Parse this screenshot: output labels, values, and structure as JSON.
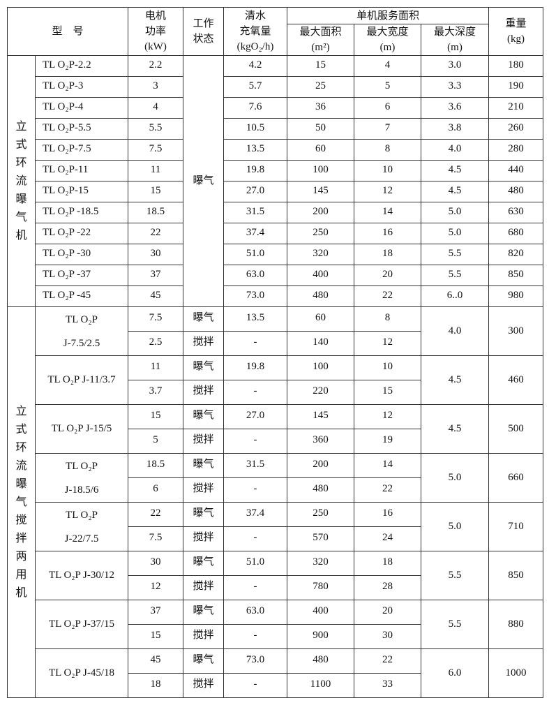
{
  "header": {
    "model": "型　号",
    "power": [
      "电机",
      "功率",
      "(kW)"
    ],
    "state": [
      "工作",
      "状态"
    ],
    "oxygen": [
      "清水",
      "充氧量",
      "(kgO₂/h)"
    ],
    "service_area": "单机服务面积",
    "max_area": [
      "最大面积",
      "(m²)"
    ],
    "max_width": [
      "最大宽度",
      "(m)"
    ],
    "max_depth": [
      "最大深度",
      "(m)"
    ],
    "weight": [
      "重量",
      "(kg)"
    ]
  },
  "section1": {
    "group": "立式环流曝气机",
    "state": "曝气",
    "rows": [
      {
        "model": "TL O₂P-2.2",
        "power": "2.2",
        "oxygen": "4.2",
        "area": "15",
        "width": "4",
        "depth": "3.0",
        "weight": "180"
      },
      {
        "model": "TL O₂P-3",
        "power": "3",
        "oxygen": "5.7",
        "area": "25",
        "width": "5",
        "depth": "3.3",
        "weight": "190"
      },
      {
        "model": "TL O₂P-4",
        "power": "4",
        "oxygen": "7.6",
        "area": "36",
        "width": "6",
        "depth": "3.6",
        "weight": "210"
      },
      {
        "model": "TL O₂P-5.5",
        "power": "5.5",
        "oxygen": "10.5",
        "area": "50",
        "width": "7",
        "depth": "3.8",
        "weight": "260"
      },
      {
        "model": "TL O₂P-7.5",
        "power": "7.5",
        "oxygen": "13.5",
        "area": "60",
        "width": "8",
        "depth": "4.0",
        "weight": "280"
      },
      {
        "model": "TL O₂P-11",
        "power": "11",
        "oxygen": "19.8",
        "area": "100",
        "width": "10",
        "depth": "4.5",
        "weight": "440"
      },
      {
        "model": "TL O₂P-15",
        "power": "15",
        "oxygen": "27.0",
        "area": "145",
        "width": "12",
        "depth": "4.5",
        "weight": "480"
      },
      {
        "model": "TL O₂P -18.5",
        "power": "18.5",
        "oxygen": "31.5",
        "area": "200",
        "width": "14",
        "depth": "5.0",
        "weight": "630"
      },
      {
        "model": "TL O₂P -22",
        "power": "22",
        "oxygen": "37.4",
        "area": "250",
        "width": "16",
        "depth": "5.0",
        "weight": "680"
      },
      {
        "model": "TL O₂P -30",
        "power": "30",
        "oxygen": "51.0",
        "area": "320",
        "width": "18",
        "depth": "5.5",
        "weight": "820"
      },
      {
        "model": "TL O₂P -37",
        "power": "37",
        "oxygen": "63.0",
        "area": "400",
        "width": "20",
        "depth": "5.5",
        "weight": "850"
      },
      {
        "model": "TL O₂P -45",
        "power": "45",
        "oxygen": "73.0",
        "area": "480",
        "width": "22",
        "depth": "6..0",
        "weight": "980"
      }
    ]
  },
  "section2": {
    "group": "立式环流曝气搅拌两用机",
    "rows": [
      {
        "model": [
          "TL O₂P",
          "J-7.5/2.5"
        ],
        "depth": "4.0",
        "weight": "300",
        "modes": [
          {
            "power": "7.5",
            "state": "曝气",
            "oxygen": "13.5",
            "area": "60",
            "width": "8"
          },
          {
            "power": "2.5",
            "state": "搅拌",
            "oxygen": "-",
            "area": "140",
            "width": "12"
          }
        ]
      },
      {
        "model": [
          "TL O₂P J-11/3.7"
        ],
        "depth": "4.5",
        "weight": "460",
        "modes": [
          {
            "power": "11",
            "state": "曝气",
            "oxygen": "19.8",
            "area": "100",
            "width": "10"
          },
          {
            "power": "3.7",
            "state": "搅拌",
            "oxygen": "-",
            "area": "220",
            "width": "15"
          }
        ]
      },
      {
        "model": [
          "TL O₂P J-15/5"
        ],
        "depth": "4.5",
        "weight": "500",
        "modes": [
          {
            "power": "15",
            "state": "曝气",
            "oxygen": "27.0",
            "area": "145",
            "width": "12"
          },
          {
            "power": "5",
            "state": "搅拌",
            "oxygen": "-",
            "area": "360",
            "width": "19"
          }
        ]
      },
      {
        "model": [
          "TL O₂P",
          "J-18.5/6"
        ],
        "depth": "5.0",
        "weight": "660",
        "modes": [
          {
            "power": "18.5",
            "state": "曝气",
            "oxygen": "31.5",
            "area": "200",
            "width": "14"
          },
          {
            "power": "6",
            "state": "搅拌",
            "oxygen": "-",
            "area": "480",
            "width": "22"
          }
        ]
      },
      {
        "model": [
          "TL O₂P",
          "J-22/7.5"
        ],
        "depth": "5.0",
        "weight": "710",
        "modes": [
          {
            "power": "22",
            "state": "曝气",
            "oxygen": "37.4",
            "area": "250",
            "width": "16"
          },
          {
            "power": "7.5",
            "state": "搅拌",
            "oxygen": "-",
            "area": "570",
            "width": "24"
          }
        ]
      },
      {
        "model": [
          "TL O₂P J-30/12"
        ],
        "depth": "5.5",
        "weight": "850",
        "modes": [
          {
            "power": "30",
            "state": "曝气",
            "oxygen": "51.0",
            "area": "320",
            "width": "18"
          },
          {
            "power": "12",
            "state": "搅拌",
            "oxygen": "-",
            "area": "780",
            "width": "28"
          }
        ]
      },
      {
        "model": [
          "TL O₂P J-37/15"
        ],
        "depth": "5.5",
        "weight": "880",
        "modes": [
          {
            "power": "37",
            "state": "曝气",
            "oxygen": "63.0",
            "area": "400",
            "width": "20"
          },
          {
            "power": "15",
            "state": "搅拌",
            "oxygen": "-",
            "area": "900",
            "width": "30"
          }
        ]
      },
      {
        "model": [
          "TL O₂P J-45/18"
        ],
        "depth": "6.0",
        "weight": "1000",
        "modes": [
          {
            "power": "45",
            "state": "曝气",
            "oxygen": "73.0",
            "area": "480",
            "width": "22"
          },
          {
            "power": "18",
            "state": "搅拌",
            "oxygen": "-",
            "area": "1100",
            "width": "33"
          }
        ]
      }
    ]
  }
}
